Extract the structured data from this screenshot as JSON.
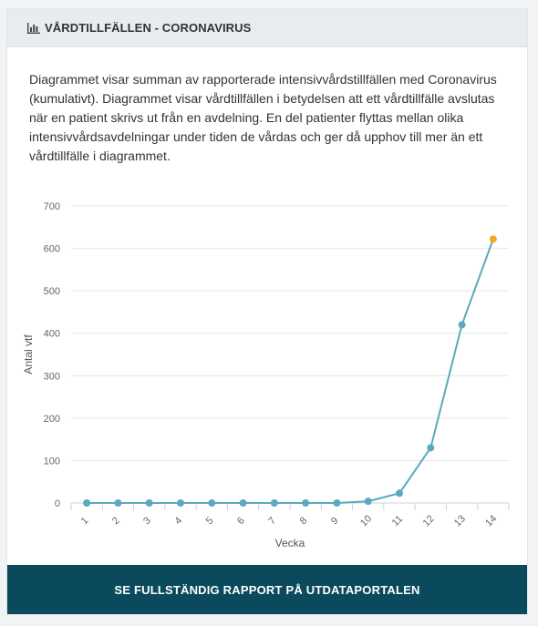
{
  "header": {
    "title": "VÅRDTILLFÄLLEN - CORONAVIRUS",
    "icon": "bar-chart-icon"
  },
  "description": "Diagrammet visar summan av rapporterade intensivvårdstillfällen med Coronavirus (kumulativt). Diagrammet visar vårdtillfällen i betydelsen att ett vårdtillfälle avslutas när en patient skrivs ut från en avdelning. En del patienter flyttas mellan olika intensivvårdsavdelningar under tiden de vårdas och ger då upphov till mer än ett vårdtillfälle i diagrammet.",
  "chart_data": {
    "type": "line",
    "xlabel": "Vecka",
    "ylabel": "Antal vtf",
    "categories": [
      "1",
      "2",
      "3",
      "4",
      "5",
      "6",
      "7",
      "8",
      "9",
      "10",
      "11",
      "12",
      "13",
      "14"
    ],
    "values": [
      0,
      0,
      0,
      0,
      0,
      0,
      0,
      0,
      0,
      4,
      23,
      130,
      420,
      622
    ],
    "ylim": [
      0,
      700
    ],
    "yticks": [
      0,
      100,
      200,
      300,
      400,
      500,
      600,
      700
    ],
    "grid": true,
    "line_color": "#5aa9c0",
    "highlight_color": "#f5a623"
  },
  "footer": {
    "button_label": "SE FULLSTÄNDIG RAPPORT PÅ UTDATAPORTALEN"
  }
}
